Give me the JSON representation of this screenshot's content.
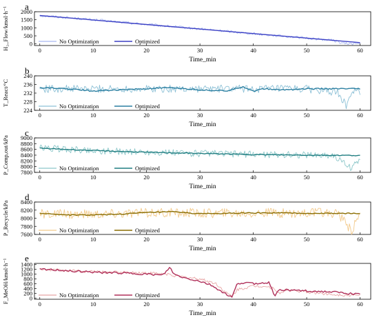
{
  "chart_data": [
    {
      "panel_letter": "a",
      "type": "line",
      "xlabel": "Time_min",
      "ylabel": "H₂_Flow/kmol·h⁻¹",
      "xlim": [
        -1,
        62
      ],
      "ylim": [
        -100,
        2000
      ],
      "xticks": [
        0,
        10,
        20,
        30,
        40,
        50,
        60
      ],
      "yticks": [
        0,
        500,
        1000,
        1500,
        2000
      ],
      "legend": [
        "No Optimization",
        "Optimized"
      ],
      "colors": {
        "no_opt": "#a8b8f0",
        "opt": "#3b3fc4"
      },
      "series": [
        {
          "name": "No Optimization",
          "x": [
            0,
            5,
            10,
            15,
            20,
            25,
            30,
            35,
            40,
            45,
            50,
            55,
            57,
            59.5,
            60
          ],
          "y": [
            1760,
            1640,
            1500,
            1360,
            1210,
            1070,
            930,
            790,
            640,
            500,
            360,
            220,
            20,
            10,
            10
          ],
          "noise": 80
        },
        {
          "name": "Optimized",
          "x": [
            0,
            60
          ],
          "y": [
            1770,
            80
          ],
          "noise": 0
        }
      ]
    },
    {
      "panel_letter": "b",
      "type": "line",
      "xlabel": "Time_min",
      "ylabel": "T_React/°C",
      "xlim": [
        -1,
        62
      ],
      "ylim": [
        224,
        240
      ],
      "xticks": [
        0,
        10,
        20,
        30,
        40,
        50,
        60
      ],
      "yticks": [
        224,
        228,
        232,
        236,
        240
      ],
      "legend": [
        "No Optimization",
        "Optimized"
      ],
      "colors": {
        "no_opt": "#8cc0d6",
        "opt": "#2a7ea0"
      },
      "series": [
        {
          "name": "No Optimization",
          "x": [
            0,
            10,
            20,
            30,
            40,
            50,
            56,
            57.5,
            58.5,
            60
          ],
          "y": [
            234,
            234,
            234,
            234,
            234,
            234,
            232,
            225.5,
            233,
            233
          ],
          "noise": 1.8
        },
        {
          "name": "Optimized",
          "x": [
            0,
            5,
            10,
            15,
            20,
            25,
            30,
            35,
            38,
            40,
            42,
            45,
            50,
            55,
            60
          ],
          "y": [
            234.5,
            234,
            233,
            233.5,
            234,
            234.5,
            233.5,
            233,
            235,
            233,
            234,
            233.5,
            234,
            234,
            234
          ],
          "noise": 0.3
        }
      ]
    },
    {
      "panel_letter": "c",
      "type": "line",
      "xlabel": "Time_min",
      "ylabel": "P_Comp,out/kPa",
      "xlim": [
        -1,
        62
      ],
      "ylim": [
        7800,
        9000
      ],
      "xticks": [
        0,
        10,
        20,
        30,
        40,
        50,
        60
      ],
      "yticks": [
        7800,
        8000,
        8200,
        8400,
        8600,
        8800,
        9000
      ],
      "legend": [
        "No Optimization",
        "Optimized"
      ],
      "colors": {
        "no_opt": "#8cc7c9",
        "opt": "#1f7d80"
      },
      "series": [
        {
          "name": "No Optimization",
          "x": [
            0,
            10,
            20,
            30,
            40,
            50,
            55,
            57,
            58.5,
            60
          ],
          "y": [
            8650,
            8560,
            8500,
            8460,
            8430,
            8410,
            8400,
            8100,
            7950,
            8300
          ],
          "noise": 120
        },
        {
          "name": "Optimized",
          "x": [
            0,
            10,
            20,
            30,
            40,
            50,
            60
          ],
          "y": [
            8640,
            8560,
            8500,
            8460,
            8420,
            8400,
            8390
          ],
          "noise": 15
        }
      ]
    },
    {
      "panel_letter": "d",
      "type": "line",
      "xlabel": "Time_min",
      "ylabel": "P_Recycle/kPa",
      "xlim": [
        -1,
        62
      ],
      "ylim": [
        7600,
        8400
      ],
      "xticks": [
        0,
        10,
        20,
        30,
        40,
        50,
        60
      ],
      "yticks": [
        7600,
        7800,
        8000,
        8200,
        8400
      ],
      "legend": [
        "No Optimization",
        "Optimized"
      ],
      "colors": {
        "no_opt": "#f2c98a",
        "opt": "#8a6d00"
      },
      "series": [
        {
          "name": "No Optimization",
          "x": [
            0,
            10,
            20,
            30,
            40,
            50,
            56,
            57.5,
            58.5,
            60
          ],
          "y": [
            8100,
            8100,
            8130,
            8130,
            8130,
            8130,
            8130,
            7800,
            7700,
            8130
          ],
          "noise": 120
        },
        {
          "name": "Optimized",
          "x": [
            0,
            5,
            10,
            15,
            20,
            25,
            30,
            35,
            40,
            45,
            50,
            60
          ],
          "y": [
            8120,
            8080,
            8080,
            8100,
            8140,
            8160,
            8110,
            8120,
            8130,
            8130,
            8120,
            8120
          ],
          "noise": 12
        }
      ]
    },
    {
      "panel_letter": "e",
      "type": "line",
      "xlabel": "Time_min",
      "ylabel": "F_MeOH/kmol·h⁻¹",
      "xlim": [
        -1,
        62
      ],
      "ylim": [
        -50,
        1450
      ],
      "xticks": [
        0,
        10,
        20,
        30,
        40,
        50,
        60
      ],
      "yticks": [
        0,
        200,
        400,
        600,
        800,
        1000,
        1200,
        1400
      ],
      "legend": [
        "No Optimization",
        "Optimized"
      ],
      "colors": {
        "no_opt": "#e8a5a5",
        "opt": "#b0305a"
      },
      "series": [
        {
          "name": "No Optimization",
          "x": [
            0,
            5,
            10,
            15,
            20,
            24,
            26,
            30,
            33,
            35,
            36,
            37,
            40,
            42,
            44,
            45,
            46,
            50,
            55,
            60
          ],
          "y": [
            1200,
            1150,
            1100,
            1080,
            1050,
            1000,
            900,
            800,
            600,
            200,
            60,
            350,
            500,
            500,
            400,
            150,
            350,
            250,
            150,
            100
          ],
          "noise": 60
        },
        {
          "name": "Optimized",
          "x": [
            0,
            5,
            10,
            15,
            20,
            23,
            24.5,
            25,
            27,
            30,
            32,
            35,
            36,
            37,
            38.5,
            40,
            43,
            44,
            45,
            50,
            55,
            60
          ],
          "y": [
            1200,
            1150,
            1080,
            1050,
            1000,
            950,
            1300,
            1000,
            850,
            700,
            550,
            150,
            30,
            600,
            650,
            600,
            650,
            100,
            350,
            300,
            250,
            150
          ],
          "noise": 40
        }
      ]
    }
  ]
}
